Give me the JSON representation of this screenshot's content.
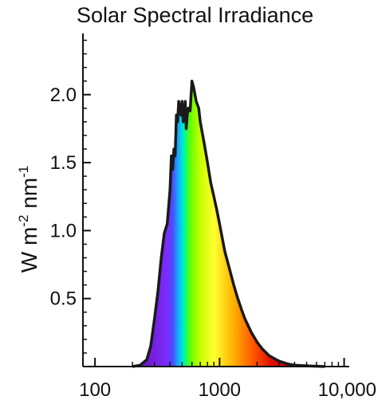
{
  "chart_data": {
    "type": "area",
    "title": "Solar Spectral Irradiance",
    "xlabel": "",
    "ylabel": {
      "base": "W m",
      "sup1": "-2",
      "mid": " nm",
      "sup2": "-1"
    },
    "x_scale": "log",
    "xlim": [
      80,
      11000
    ],
    "ylim": [
      0,
      2.45
    ],
    "x_ticks": [
      {
        "value": 100,
        "label": "100"
      },
      {
        "value": 1000,
        "label": "1000"
      },
      {
        "value": 10000,
        "label": "10,000"
      }
    ],
    "y_ticks": [
      {
        "value": 0.5,
        "label": "0.5"
      },
      {
        "value": 1.0,
        "label": "1.0"
      },
      {
        "value": 1.5,
        "label": "1.5"
      },
      {
        "value": 2.0,
        "label": "2.0"
      }
    ],
    "grid": false,
    "fill": "rainbow gradient by wavelength (violet to red)",
    "series": [
      {
        "x": [
          200,
          230,
          260,
          280,
          300,
          320,
          340,
          360,
          380,
          400,
          410,
          420,
          430,
          440,
          450,
          460,
          470,
          480,
          490,
          500,
          510,
          520,
          530,
          540,
          550,
          560,
          570,
          580,
          600,
          620,
          650,
          680,
          700,
          750,
          800,
          850,
          900,
          950,
          1000,
          1100,
          1200,
          1300,
          1400,
          1500,
          1600,
          1800,
          2000,
          2200,
          2500,
          3000,
          3500,
          4000,
          5000,
          7000
        ],
        "y": [
          0.0,
          0.01,
          0.05,
          0.15,
          0.35,
          0.55,
          0.8,
          0.98,
          1.05,
          1.3,
          1.55,
          1.45,
          1.6,
          1.55,
          1.85,
          1.8,
          1.95,
          1.9,
          1.85,
          1.95,
          1.8,
          1.85,
          1.95,
          1.75,
          1.85,
          1.9,
          1.9,
          1.88,
          2.1,
          2.05,
          1.95,
          1.9,
          1.8,
          1.65,
          1.5,
          1.35,
          1.25,
          1.15,
          1.05,
          0.85,
          0.72,
          0.6,
          0.5,
          0.42,
          0.35,
          0.25,
          0.18,
          0.13,
          0.08,
          0.04,
          0.02,
          0.01,
          0.005,
          0.0
        ]
      }
    ]
  }
}
